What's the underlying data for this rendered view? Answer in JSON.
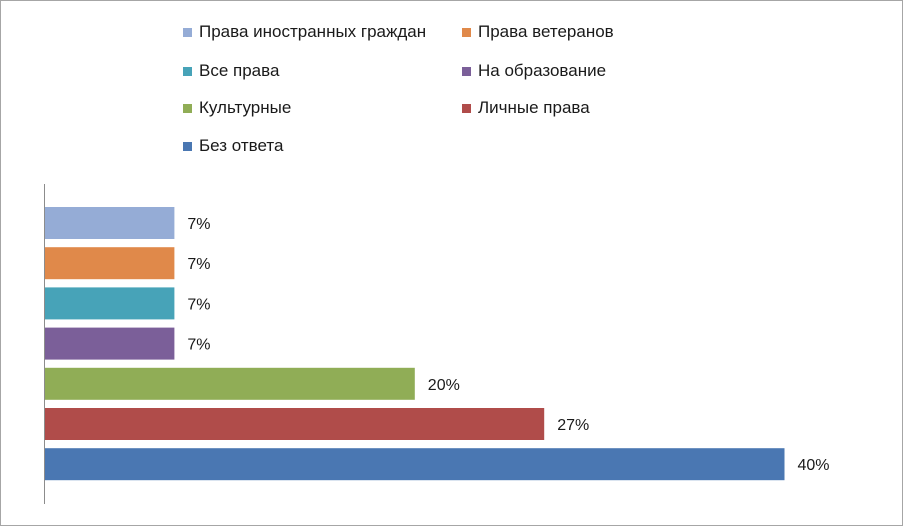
{
  "chart_data": {
    "type": "bar",
    "orientation": "horizontal",
    "categories": [
      "Права иностранных граждан",
      "Права ветеранов",
      "Все права",
      "На образование",
      "Культурные",
      "Личные права",
      "Без ответа"
    ],
    "values": [
      7,
      7,
      7,
      7,
      20,
      27,
      40
    ],
    "data_labels": [
      "7%",
      "7%",
      "7%",
      "7%",
      "20%",
      "27%",
      "40%"
    ],
    "colors": [
      "#95acd6",
      "#e0894a",
      "#47a3b8",
      "#7b5f99",
      "#90ad56",
      "#b04c4a",
      "#4a77b2"
    ],
    "xlim": [
      0,
      43
    ],
    "unit": "%",
    "grid": false,
    "legend_position": "top"
  }
}
